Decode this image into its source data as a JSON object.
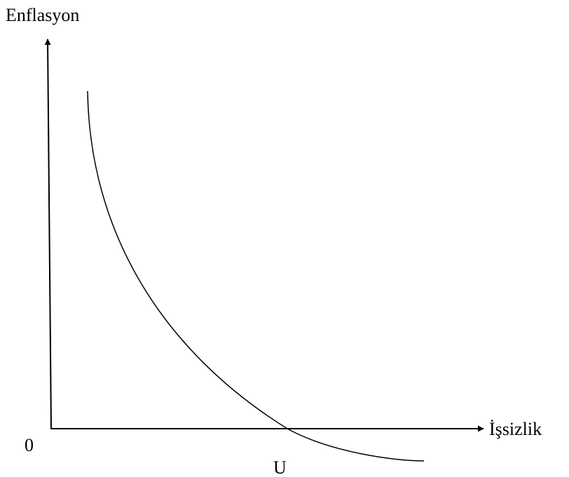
{
  "axes": {
    "y_label": "Enflasyon",
    "x_label": "İşsizlik",
    "origin": "0"
  },
  "curve": {
    "label": "U"
  }
}
